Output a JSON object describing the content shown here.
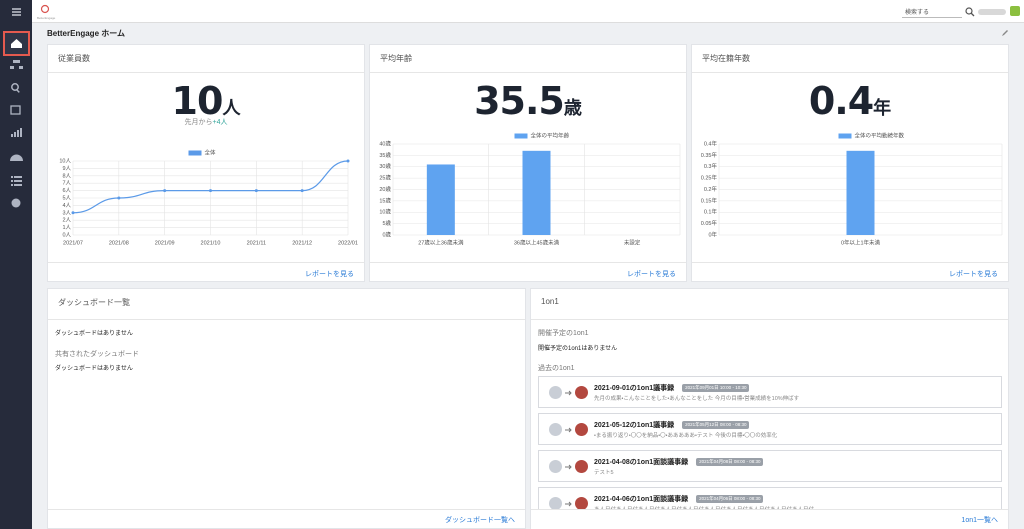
{
  "header": {
    "logo": "BetterEngage",
    "search_placeholder": "検索する",
    "page_title": "BetterEngage ホーム"
  },
  "kpis": [
    {
      "title": "従業員数",
      "value": 10,
      "unit": "人",
      "change_prefix": "先月から",
      "change": "+4人",
      "link": "レポートを見る",
      "chart": {
        "type": "line",
        "legend": "全体",
        "color": "#5b9ae8",
        "categories": [
          "2021/07",
          "2021/08",
          "2021/09",
          "2021/10",
          "2021/11",
          "2021/12",
          "2022/01"
        ],
        "values": [
          3,
          5,
          6,
          6,
          6,
          6,
          10
        ],
        "ylim": [
          0,
          10
        ],
        "yticks": [
          {
            "value": 0,
            "label": "0人"
          },
          {
            "value": 1,
            "label": "1人"
          },
          {
            "value": 2,
            "label": "2人"
          },
          {
            "value": 3,
            "label": "3人"
          },
          {
            "value": 4,
            "label": "4人"
          },
          {
            "value": 5,
            "label": "5人"
          },
          {
            "value": 6,
            "label": "6人"
          },
          {
            "value": 7,
            "label": "7人"
          },
          {
            "value": 8,
            "label": "8人"
          },
          {
            "value": 9,
            "label": "9人"
          },
          {
            "value": 10,
            "label": "10人"
          }
        ]
      }
    },
    {
      "title": "平均年齢",
      "value": 35.5,
      "unit": "歳",
      "link": "レポートを見る",
      "chart": {
        "type": "bar",
        "legend": "全体の平均年齢",
        "color": "#5fa3f0",
        "categories": [
          "27歳以上36歳未満",
          "36歳以上45歳未満",
          "未設定"
        ],
        "values": [
          31,
          37,
          0
        ],
        "ylim": [
          0,
          40
        ],
        "yticks": [
          {
            "value": 0,
            "label": "0歳"
          },
          {
            "value": 5,
            "label": "5歳"
          },
          {
            "value": 10,
            "label": "10歳"
          },
          {
            "value": 15,
            "label": "15歳"
          },
          {
            "value": 20,
            "label": "20歳"
          },
          {
            "value": 25,
            "label": "25歳"
          },
          {
            "value": 30,
            "label": "30歳"
          },
          {
            "value": 35,
            "label": "35歳"
          },
          {
            "value": 40,
            "label": "40歳"
          }
        ]
      }
    },
    {
      "title": "平均在籍年数",
      "value": 0.4,
      "unit": "年",
      "link": "レポートを見る",
      "chart": {
        "type": "bar",
        "legend": "全体の平均勤続年数",
        "color": "#5fa3f0",
        "categories": [
          "0年以上1年未満"
        ],
        "values": [
          0.37
        ],
        "ylim": [
          0,
          0.4
        ],
        "yticks": [
          {
            "value": 0,
            "label": "0年"
          },
          {
            "value": 0.05,
            "label": "0.05年"
          },
          {
            "value": 0.1,
            "label": "0.1年"
          },
          {
            "value": 0.15,
            "label": "0.15年"
          },
          {
            "value": 0.2,
            "label": "0.2年"
          },
          {
            "value": 0.25,
            "label": "0.25年"
          },
          {
            "value": 0.3,
            "label": "0.3年"
          },
          {
            "value": 0.35,
            "label": "0.35年"
          },
          {
            "value": 0.4,
            "label": "0.4年"
          }
        ]
      }
    }
  ],
  "dashboards": {
    "title": "ダッシュボード一覧",
    "empty": "ダッシュボードはありません",
    "shared_title": "共有されたダッシュボード",
    "shared_empty": "ダッシュボードはありません",
    "link": "ダッシュボード一覧へ"
  },
  "one_on_one": {
    "title": "1on1",
    "upcoming_title": "開催予定の1on1",
    "upcoming_empty": "開催予定の1on1はありません",
    "past_title": "過去の1on1",
    "link": "1on1一覧へ",
    "items": [
      {
        "title": "2021-09-01の1on1議事録",
        "date": "2021年09月01日 10:00 - 10:30",
        "summary": "先月の成果・こんなことをした・あんなことをした 今月の目標・営業成績を10%伸ばす"
      },
      {
        "title": "2021-05-12の1on1議事録",
        "date": "2021年05月12日 08:00 - 08:30",
        "summary": "・まる振り返り・〇〇を納品・〇・あああああ・テスト 今後の目標・〇〇の効率化"
      },
      {
        "title": "2021-04-08の1on1面談議事録",
        "date": "2021年04月08日 08:00 - 08:30",
        "summary": "テスト5"
      },
      {
        "title": "2021-04-06の1on1面談議事録",
        "date": "2021年04月06日 08:00 - 08:30",
        "summary": "あ人日付あ人日付あ人日付あ人日付あ人日付あ人日付あ人日付あ人日付あ人日付あ人日付"
      }
    ]
  }
}
